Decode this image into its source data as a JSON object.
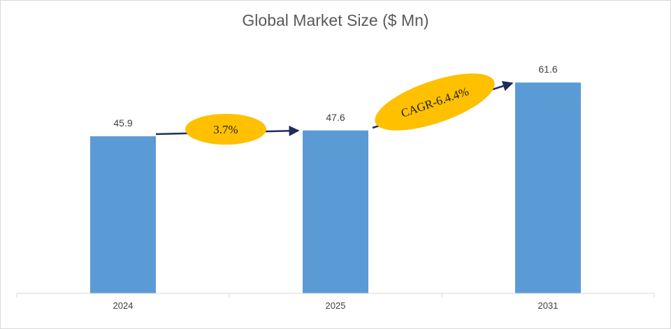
{
  "chart_data": {
    "type": "bar",
    "title": "Global Market Size ($ Mn)",
    "categories": [
      "2024",
      "2025",
      "2031"
    ],
    "values": [
      45.9,
      47.6,
      61.6
    ],
    "data_labels": [
      "45.9",
      "47.6",
      "61.6"
    ],
    "xlabel": "",
    "ylabel": "",
    "ylim": [
      0,
      80
    ],
    "grid": false,
    "legend": "none",
    "bar_color": "#5b9bd5",
    "annotations": [
      {
        "text": "3.7%",
        "from": "2024",
        "to": "2025",
        "color": "#ffc000"
      },
      {
        "text": "CAGR-6.4.4%",
        "from": "2025",
        "to": "2031",
        "color": "#ffc000"
      }
    ],
    "arrow_color": "#1f2d5a"
  }
}
